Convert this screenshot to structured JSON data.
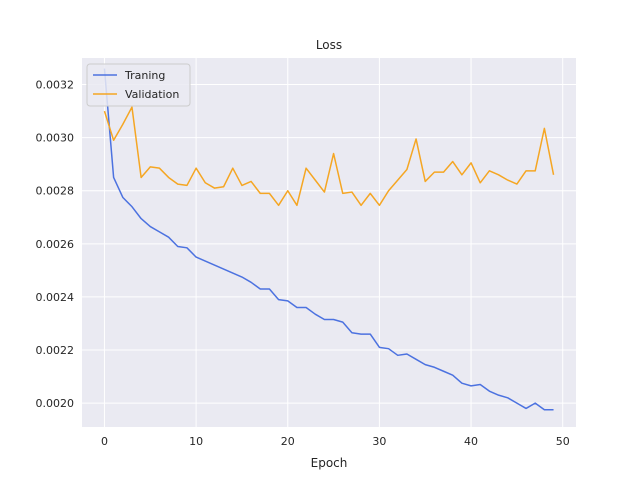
{
  "chart_data": {
    "type": "line",
    "title": "Loss",
    "xlabel": "Epoch",
    "ylabel": "",
    "xlim": [
      -2.45,
      51.45
    ],
    "ylim": [
      0.00191,
      0.0033
    ],
    "xticks": [
      0,
      10,
      20,
      30,
      40,
      50
    ],
    "yticks": [
      0.002,
      0.0022,
      0.0024,
      0.0026,
      0.0028,
      0.003,
      0.0032
    ],
    "ytick_labels": [
      "0.0020",
      "0.0022",
      "0.0024",
      "0.0026",
      "0.0028",
      "0.0030",
      "0.0032"
    ],
    "grid": true,
    "legend_position": "top-left",
    "series": [
      {
        "name": "Traning",
        "color": "#4c72e0",
        "x": [
          0,
          1,
          2,
          3,
          4,
          5,
          6,
          7,
          8,
          9,
          10,
          11,
          12,
          13,
          14,
          15,
          16,
          17,
          18,
          19,
          20,
          21,
          22,
          23,
          24,
          25,
          26,
          27,
          28,
          29,
          30,
          31,
          32,
          33,
          34,
          35,
          36,
          37,
          38,
          39,
          40,
          41,
          42,
          43,
          44,
          45,
          46,
          47,
          48,
          49
        ],
        "values": [
          0.00326,
          0.00285,
          0.002775,
          0.00274,
          0.002695,
          0.002665,
          0.002645,
          0.002625,
          0.00259,
          0.002585,
          0.00255,
          0.002535,
          0.00252,
          0.002505,
          0.00249,
          0.002475,
          0.002455,
          0.00243,
          0.00243,
          0.00239,
          0.002385,
          0.00236,
          0.00236,
          0.002335,
          0.002315,
          0.002315,
          0.002305,
          0.002265,
          0.00226,
          0.00226,
          0.00221,
          0.002205,
          0.00218,
          0.002185,
          0.002165,
          0.002145,
          0.002135,
          0.00212,
          0.002105,
          0.002075,
          0.002065,
          0.00207,
          0.002045,
          0.00203,
          0.00202,
          0.002,
          0.00198,
          0.002,
          0.001975,
          0.001975
        ]
      },
      {
        "name": "Validation",
        "color": "#f5a623",
        "x": [
          0,
          1,
          2,
          3,
          4,
          5,
          6,
          7,
          8,
          9,
          10,
          11,
          12,
          13,
          14,
          15,
          16,
          17,
          18,
          19,
          20,
          21,
          22,
          23,
          24,
          25,
          26,
          27,
          28,
          29,
          30,
          31,
          32,
          33,
          34,
          35,
          36,
          37,
          38,
          39,
          40,
          41,
          42,
          43,
          44,
          45,
          46,
          47,
          48,
          49
        ],
        "values": [
          0.0031,
          0.00299,
          0.00305,
          0.003115,
          0.00285,
          0.00289,
          0.002885,
          0.00285,
          0.002825,
          0.00282,
          0.002885,
          0.00283,
          0.00281,
          0.002815,
          0.002885,
          0.00282,
          0.002835,
          0.00279,
          0.00279,
          0.002745,
          0.0028,
          0.002745,
          0.002885,
          0.00284,
          0.002795,
          0.00294,
          0.00279,
          0.002795,
          0.002745,
          0.00279,
          0.002745,
          0.0028,
          0.00284,
          0.00288,
          0.002995,
          0.002835,
          0.00287,
          0.00287,
          0.00291,
          0.00286,
          0.002905,
          0.00283,
          0.002875,
          0.00286,
          0.00284,
          0.002825,
          0.002875,
          0.002875,
          0.003035,
          0.00286
        ]
      }
    ]
  }
}
